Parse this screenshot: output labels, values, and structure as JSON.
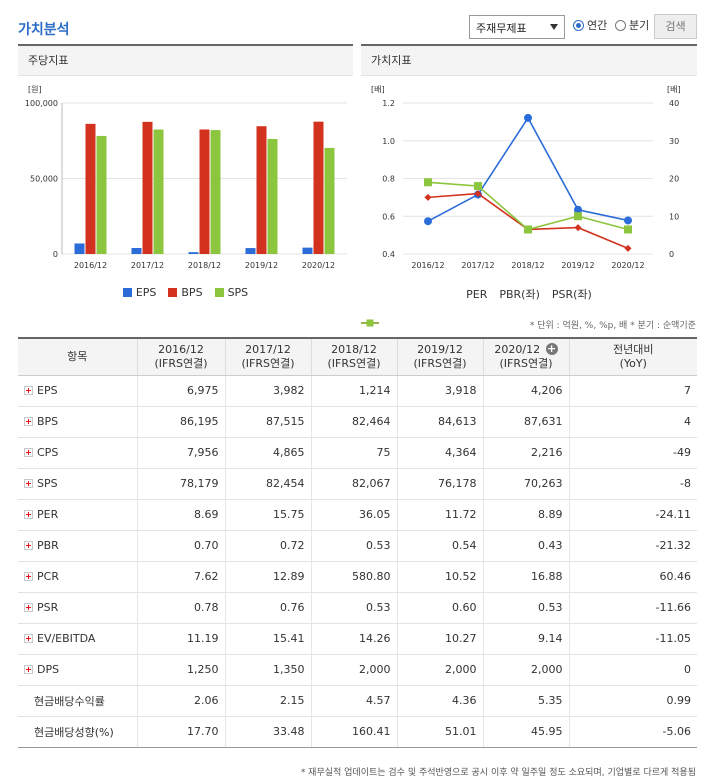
{
  "header": {
    "title": "가치분석",
    "select_value": "주재무제표",
    "radio_annual": "연간",
    "radio_quarter": "분기",
    "search_label": "검색"
  },
  "left_chart": {
    "panel_title": "주당지표",
    "chart_data": {
      "type": "bar",
      "categories": [
        "2016/12",
        "2017/12",
        "2018/12",
        "2019/12",
        "2020/12"
      ],
      "series": [
        {
          "name": "EPS",
          "values": [
            6975,
            3982,
            1214,
            3918,
            4206
          ],
          "color": "#2b6cd8"
        },
        {
          "name": "BPS",
          "values": [
            86195,
            87515,
            82464,
            84613,
            87631
          ],
          "color": "#d2321e"
        },
        {
          "name": "SPS",
          "values": [
            78179,
            82454,
            82067,
            76178,
            70263
          ],
          "color": "#8cc63e"
        }
      ],
      "yunit": "[원]",
      "yticks": [
        "100,000",
        "50,000",
        "0"
      ],
      "ylim": [
        0,
        100000
      ]
    }
  },
  "right_chart": {
    "panel_title": "가치지표",
    "chart_data": {
      "type": "line",
      "categories": [
        "2016/12",
        "2017/12",
        "2018/12",
        "2019/12",
        "2020/12"
      ],
      "series": [
        {
          "name": "PER",
          "values": [
            8.69,
            15.75,
            36.05,
            11.72,
            8.89
          ],
          "axis": "right",
          "color": "#2b6cd8"
        },
        {
          "name": "PBR(좌)",
          "values": [
            0.7,
            0.72,
            0.53,
            0.54,
            0.43
          ],
          "axis": "left",
          "color": "#d2321e"
        },
        {
          "name": "PSR(좌)",
          "values": [
            0.78,
            0.76,
            0.53,
            0.6,
            0.53
          ],
          "axis": "left",
          "color": "#8cc63e"
        }
      ],
      "left_unit": "[배]",
      "right_unit": "[배]",
      "left_ticks": [
        "1.2",
        "1.0",
        "0.8",
        "0.6",
        "0.4"
      ],
      "right_ticks": [
        "40",
        "30",
        "20",
        "10",
        "0"
      ],
      "left_ylim": [
        0.4,
        1.2
      ],
      "right_ylim": [
        0,
        40
      ]
    }
  },
  "unit_note": "* 단위 : 억원, %, %p, 배   * 분기 : 순액기준",
  "table": {
    "col_item": "항목",
    "periods": [
      "2016/12",
      "2017/12",
      "2018/12",
      "2019/12",
      "2020/12"
    ],
    "period_sub": "(IFRS연결)",
    "col_yoy": "전년대비",
    "col_yoy_sub": "(YoY)",
    "add_icon": "+",
    "rows": [
      {
        "label": "EPS",
        "expand": true,
        "values": [
          "6,975",
          "3,982",
          "1,214",
          "3,918",
          "4,206"
        ],
        "yoy": "7",
        "neg": false
      },
      {
        "label": "BPS",
        "expand": true,
        "values": [
          "86,195",
          "87,515",
          "82,464",
          "84,613",
          "87,631"
        ],
        "yoy": "4",
        "neg": false
      },
      {
        "label": "CPS",
        "expand": true,
        "values": [
          "7,956",
          "4,865",
          "75",
          "4,364",
          "2,216"
        ],
        "yoy": "-49",
        "neg": true
      },
      {
        "label": "SPS",
        "expand": true,
        "values": [
          "78,179",
          "82,454",
          "82,067",
          "76,178",
          "70,263"
        ],
        "yoy": "-8",
        "neg": true
      },
      {
        "label": "PER",
        "expand": true,
        "values": [
          "8.69",
          "15.75",
          "36.05",
          "11.72",
          "8.89"
        ],
        "yoy": "-24.11",
        "neg": true
      },
      {
        "label": "PBR",
        "expand": true,
        "values": [
          "0.70",
          "0.72",
          "0.53",
          "0.54",
          "0.43"
        ],
        "yoy": "-21.32",
        "neg": true
      },
      {
        "label": "PCR",
        "expand": true,
        "values": [
          "7.62",
          "12.89",
          "580.80",
          "10.52",
          "16.88"
        ],
        "yoy": "60.46",
        "neg": false
      },
      {
        "label": "PSR",
        "expand": true,
        "values": [
          "0.78",
          "0.76",
          "0.53",
          "0.60",
          "0.53"
        ],
        "yoy": "-11.66",
        "neg": true
      },
      {
        "label": "EV/EBITDA",
        "expand": true,
        "values": [
          "11.19",
          "15.41",
          "14.26",
          "10.27",
          "9.14"
        ],
        "yoy": "-11.05",
        "neg": true
      },
      {
        "label": "DPS",
        "expand": true,
        "values": [
          "1,250",
          "1,350",
          "2,000",
          "2,000",
          "2,000"
        ],
        "yoy": "0",
        "neg": false
      },
      {
        "label": "현금배당수익률",
        "expand": false,
        "values": [
          "2.06",
          "2.15",
          "4.57",
          "4.36",
          "5.35"
        ],
        "yoy": "0.99",
        "neg": false
      },
      {
        "label": "현금배당성향(%)",
        "expand": false,
        "values": [
          "17.70",
          "33.48",
          "160.41",
          "51.01",
          "45.95"
        ],
        "yoy": "-5.06",
        "neg": true
      }
    ]
  },
  "footnote": "* 재무실적 업데이트는 검수 및 주석반영으로 공시 이후 약 일주일 정도 소요되며, 기업별로 다르게 적용됨"
}
